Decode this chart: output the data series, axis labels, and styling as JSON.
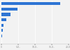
{
  "values": [
    17500,
    4800,
    2800,
    1400,
    700,
    350,
    280,
    80
  ],
  "bar_color": "#2e75d4",
  "background_color": "#f2f2f2",
  "bar_height": 0.55,
  "xlim": [
    0,
    20000
  ],
  "grid_color": "#ffffff",
  "xtick_fontsize": 2.2,
  "xtick_color": "#888888"
}
